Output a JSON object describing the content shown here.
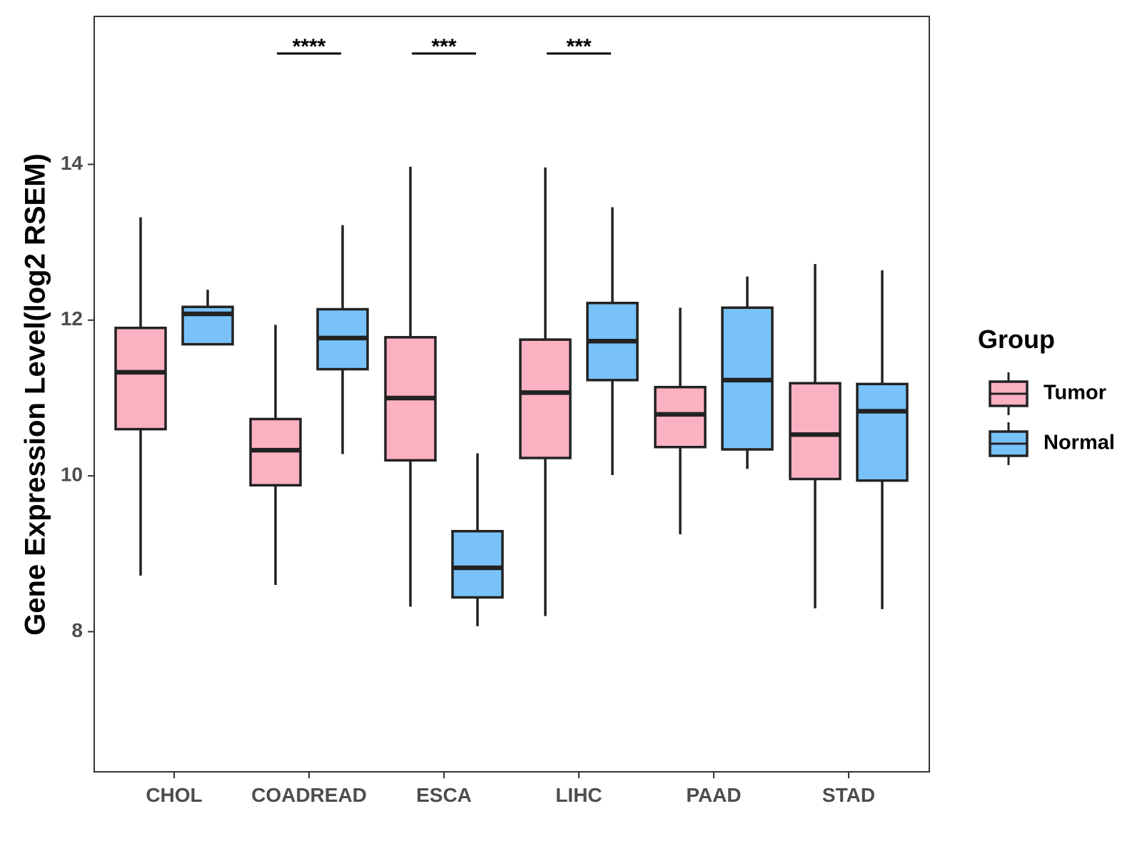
{
  "chart_data": {
    "type": "boxplot",
    "title": "",
    "xlabel": "",
    "ylabel": "Gene Expression Level(log2 RSEM)",
    "ylim": [
      6.2,
      15.9
    ],
    "yticks": [
      8,
      10,
      12,
      14
    ],
    "categories": [
      "CHOL",
      "COADREAD",
      "ESCA",
      "LIHC",
      "PAAD",
      "STAD"
    ],
    "legend": {
      "title": "Group",
      "position": "right",
      "entries": [
        "Tumor",
        "Normal"
      ]
    },
    "colors": {
      "Tumor": "#FCB1C3",
      "Normal": "#78C2F9",
      "outline": "#222222"
    },
    "series": [
      {
        "name": "Tumor",
        "boxes": [
          {
            "category": "CHOL",
            "whisker_low": 8.72,
            "q1": 10.6,
            "median": 11.33,
            "q3": 11.9,
            "whisker_high": 13.32
          },
          {
            "category": "COADREAD",
            "whisker_low": 8.6,
            "q1": 9.88,
            "median": 10.33,
            "q3": 10.73,
            "whisker_high": 11.94
          },
          {
            "category": "ESCA",
            "whisker_low": 8.32,
            "q1": 10.2,
            "median": 11.0,
            "q3": 11.78,
            "whisker_high": 13.97
          },
          {
            "category": "LIHC",
            "whisker_low": 8.2,
            "q1": 10.23,
            "median": 11.07,
            "q3": 11.75,
            "whisker_high": 13.96
          },
          {
            "category": "PAAD",
            "whisker_low": 9.25,
            "q1": 10.37,
            "median": 10.79,
            "q3": 11.14,
            "whisker_high": 12.16
          },
          {
            "category": "STAD",
            "whisker_low": 8.3,
            "q1": 9.96,
            "median": 10.53,
            "q3": 11.19,
            "whisker_high": 12.72
          }
        ]
      },
      {
        "name": "Normal",
        "boxes": [
          {
            "category": "CHOL",
            "whisker_low": 11.69,
            "q1": 11.69,
            "median": 12.08,
            "q3": 12.17,
            "whisker_high": 12.39
          },
          {
            "category": "COADREAD",
            "whisker_low": 10.28,
            "q1": 11.37,
            "median": 11.77,
            "q3": 12.14,
            "whisker_high": 13.22
          },
          {
            "category": "ESCA",
            "whisker_low": 8.07,
            "q1": 8.44,
            "median": 8.82,
            "q3": 9.29,
            "whisker_high": 10.29
          },
          {
            "category": "LIHC",
            "whisker_low": 10.01,
            "q1": 11.23,
            "median": 11.73,
            "q3": 12.22,
            "whisker_high": 13.45
          },
          {
            "category": "PAAD",
            "whisker_low": 10.09,
            "q1": 10.34,
            "median": 11.23,
            "q3": 12.16,
            "whisker_high": 12.56
          },
          {
            "category": "STAD",
            "whisker_low": 8.29,
            "q1": 9.94,
            "median": 10.83,
            "q3": 11.18,
            "whisker_high": 12.64
          }
        ]
      }
    ],
    "annotations": [
      {
        "category": "COADREAD",
        "label": "****"
      },
      {
        "category": "ESCA",
        "label": "***"
      },
      {
        "category": "LIHC",
        "label": "***"
      }
    ]
  }
}
